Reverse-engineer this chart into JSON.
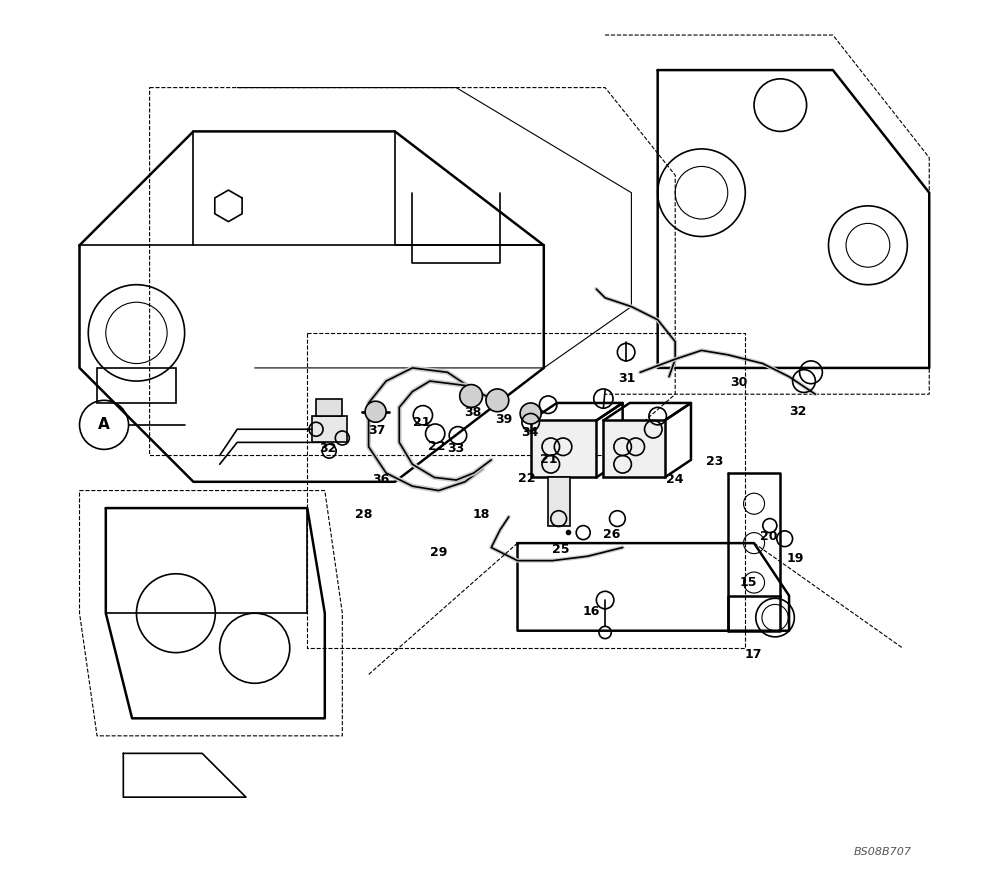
{
  "bg_color": "#ffffff",
  "line_color": "#000000",
  "figsize": [
    10.0,
    8.76
  ],
  "dpi": 100,
  "watermark": "BS08B707",
  "circle_label": "A"
}
